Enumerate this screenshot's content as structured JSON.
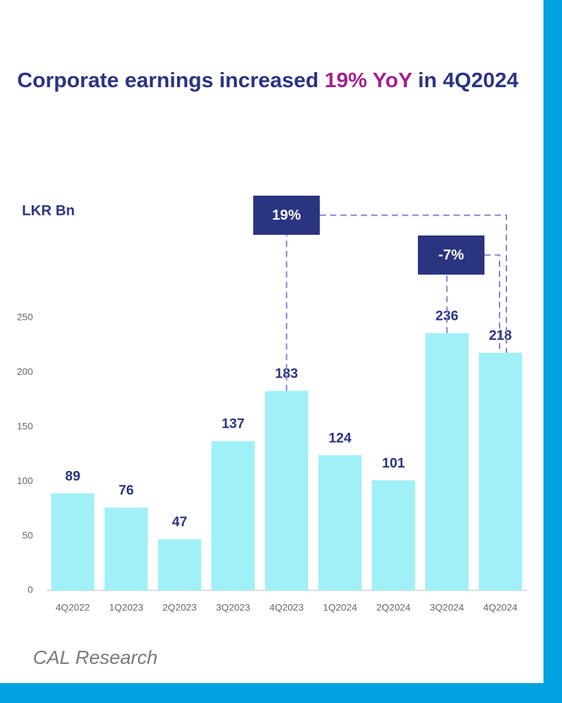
{
  "chart_data": {
    "type": "bar",
    "title": [
      "Corporate earnings increased",
      "19% YoY",
      "in 4Q2024"
    ],
    "title_highlight_color": "#a3218e",
    "y_label": "LKR Bn",
    "categories": [
      "4Q2022",
      "1Q2023",
      "2Q2023",
      "3Q2023",
      "4Q2023",
      "1Q2024",
      "2Q2024",
      "3Q2024",
      "4Q2024"
    ],
    "values": [
      89,
      76,
      47,
      137,
      183,
      124,
      101,
      236,
      218
    ],
    "color": "#a0f0f8",
    "ylim": [
      0,
      250
    ],
    "yticks": [
      0,
      50,
      100,
      150,
      200,
      250
    ],
    "grid": false,
    "annotations": [
      "19%",
      "-7%"
    ],
    "source": "CAL Research"
  }
}
